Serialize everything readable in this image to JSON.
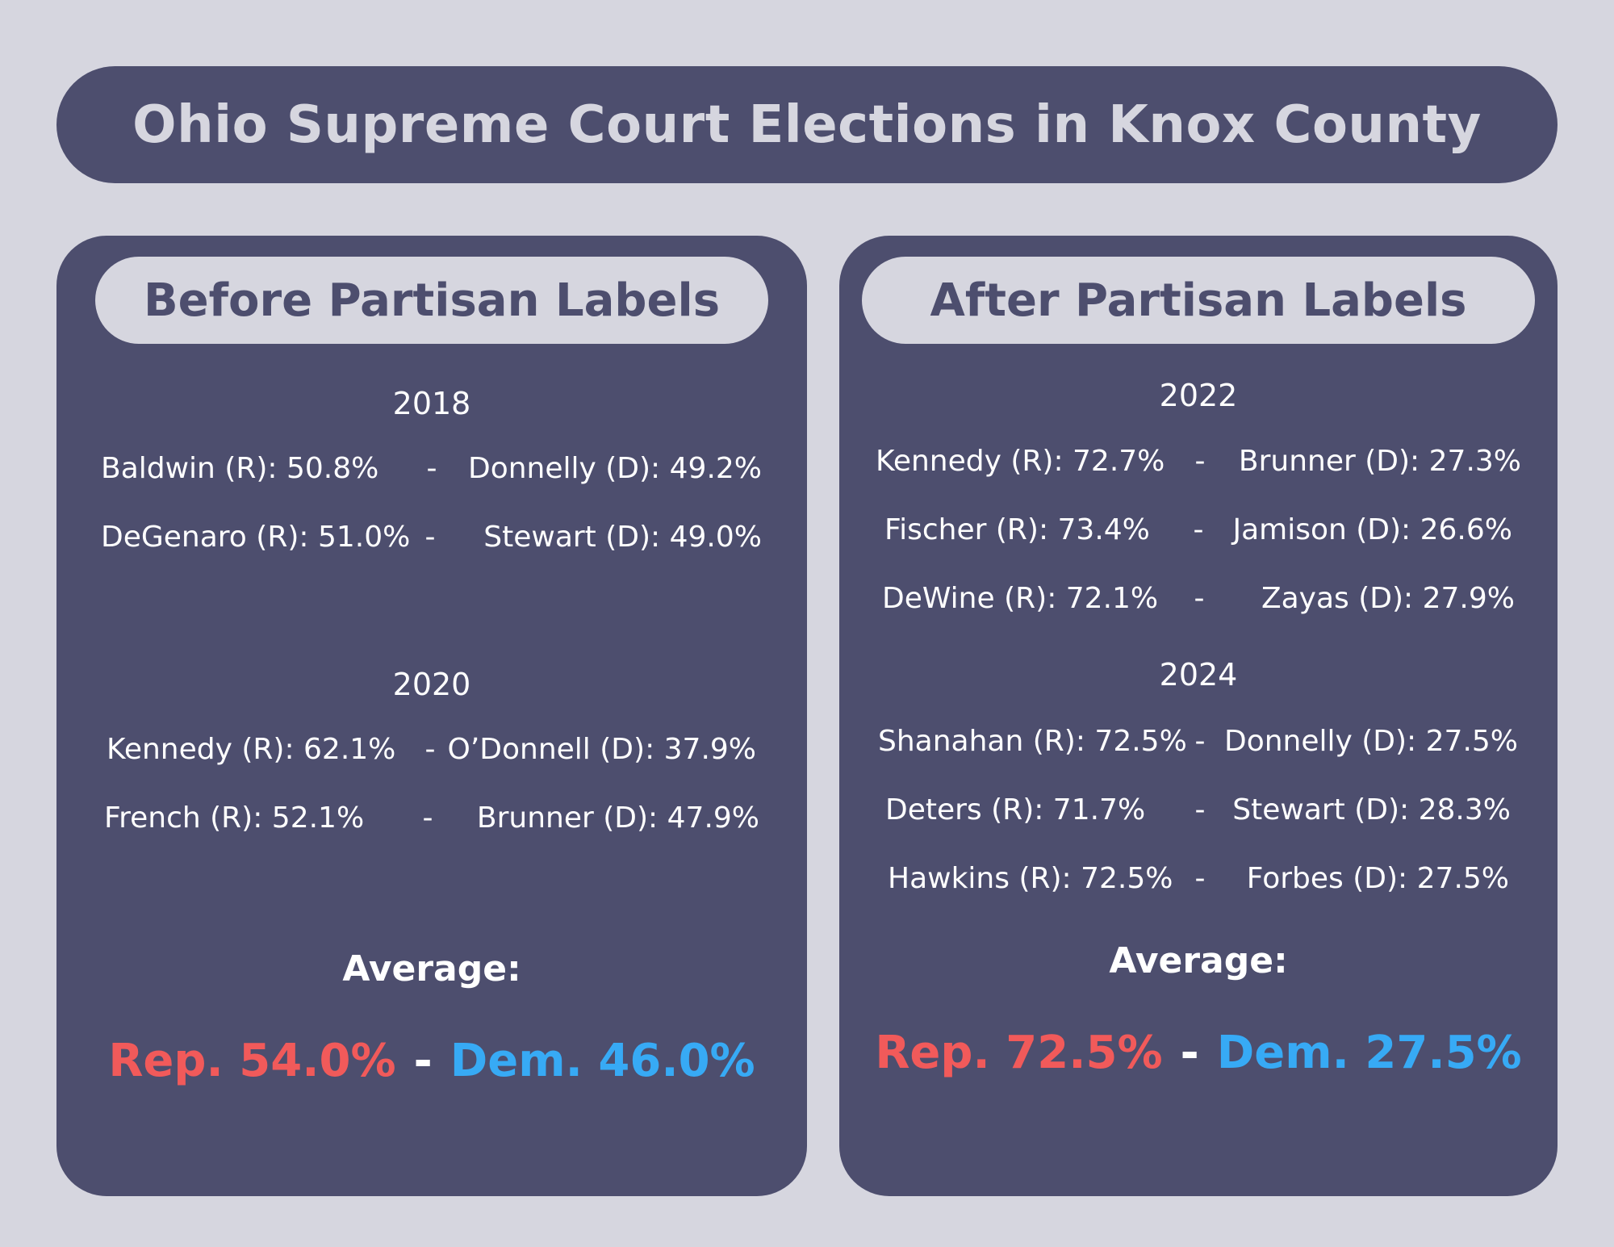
{
  "title": "Ohio Supreme Court Elections in Knox County",
  "colors": {
    "background": "#d6d6df",
    "panel": "#4d4e6e",
    "rep": "#f15a5a",
    "dem": "#37aaf5"
  },
  "before": {
    "heading": "Before Partisan Labels",
    "groups": [
      {
        "year": "2018",
        "rows": [
          {
            "rep": "Baldwin (R): 50.8%",
            "sep": "-",
            "dem": "Donnelly (D): 49.2%"
          },
          {
            "rep": "DeGenaro (R): 51.0%",
            "sep": "-",
            "dem": "Stewart (D): 49.0%"
          }
        ]
      },
      {
        "year": "2020",
        "rows": [
          {
            "rep": "Kennedy (R): 62.1%",
            "sep": "-",
            "dem": "O’Donnell (D): 37.9%"
          },
          {
            "rep": "French (R): 52.1%",
            "sep": "-",
            "dem": "Brunner (D): 47.9%"
          }
        ]
      }
    ],
    "average_label": "Average:",
    "average_rep": "Rep. 54.0%",
    "average_sep": "-",
    "average_dem": "Dem. 46.0%"
  },
  "after": {
    "heading": "After Partisan Labels",
    "groups": [
      {
        "year": "2022",
        "rows": [
          {
            "rep": "Kennedy (R): 72.7%",
            "sep": "-",
            "dem": "Brunner (D): 27.3%"
          },
          {
            "rep": "Fischer (R): 73.4%",
            "sep": "-",
            "dem": "Jamison (D): 26.6%"
          },
          {
            "rep": "DeWine (R): 72.1%",
            "sep": "-",
            "dem": "Zayas (D): 27.9%"
          }
        ]
      },
      {
        "year": "2024",
        "rows": [
          {
            "rep": "Shanahan (R): 72.5%",
            "sep": "-",
            "dem": "Donnelly (D): 27.5%"
          },
          {
            "rep": "Deters (R): 71.7%",
            "sep": "-",
            "dem": "Stewart (D): 28.3%"
          },
          {
            "rep": "Hawkins (R): 72.5%",
            "sep": "-",
            "dem": "Forbes (D): 27.5%"
          }
        ]
      }
    ],
    "average_label": "Average:",
    "average_rep": "Rep. 72.5%",
    "average_sep": "-",
    "average_dem": "Dem. 27.5%"
  }
}
